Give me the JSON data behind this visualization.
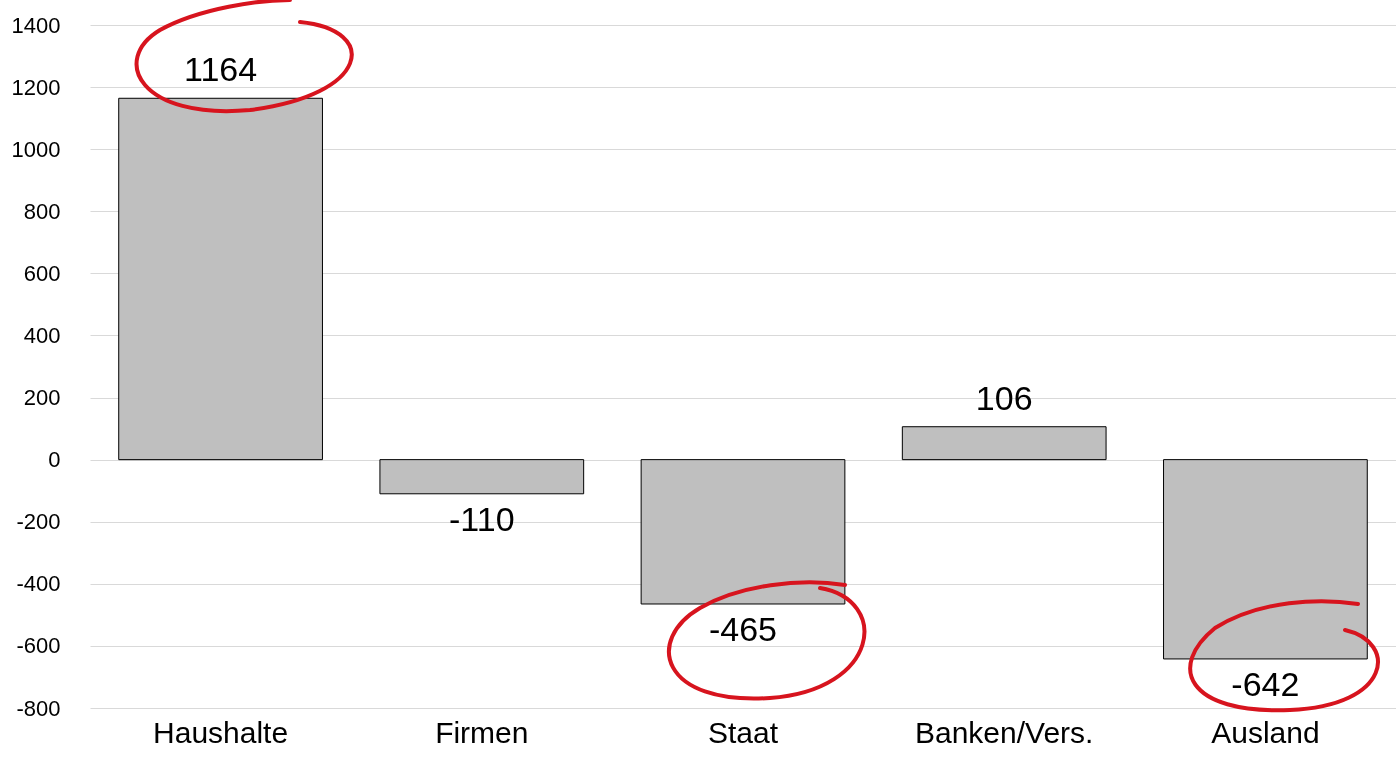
{
  "chart_data": {
    "type": "bar",
    "categories": [
      "Haushalte",
      "Firmen",
      "Staat",
      "Banken/Vers.",
      "Ausland"
    ],
    "values": [
      1164,
      -110,
      -465,
      106,
      -642
    ],
    "color": "#bfbfbf",
    "ylim": [
      -800,
      1400
    ],
    "yticks": [
      -800,
      -600,
      -400,
      -200,
      0,
      200,
      400,
      600,
      800,
      1000,
      1200,
      1400
    ],
    "grid": "y",
    "data_labels": true
  }
}
